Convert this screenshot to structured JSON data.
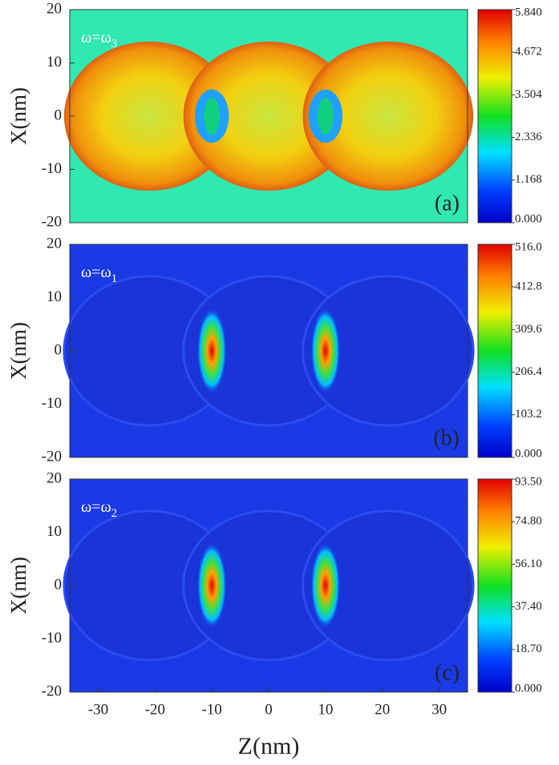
{
  "chart_data": [
    {
      "type": "heatmap",
      "colormap": "jet",
      "annotation": [
        "ω=ω",
        "3"
      ],
      "panel_label": "(a)",
      "ylabel": "X(nm)",
      "xlim": [
        -35,
        35
      ],
      "ylim": [
        -20,
        20
      ],
      "yticks": [
        -20,
        -10,
        0,
        10,
        20
      ],
      "clim": [
        0,
        5.84
      ],
      "cticks": [
        {
          "value": 0,
          "label": "0.000"
        },
        {
          "value": 1.168,
          "label": "1.168"
        },
        {
          "value": 2.336,
          "label": "2.336"
        },
        {
          "value": 3.504,
          "label": "3.504"
        },
        {
          "value": 4.672,
          "label": "4.672"
        },
        {
          "value": 5.84,
          "label": "5.840"
        }
      ]
    },
    {
      "type": "heatmap",
      "colormap": "jet",
      "annotation": [
        "ω=ω",
        "1"
      ],
      "panel_label": "(b)",
      "ylabel": "X(nm)",
      "xlim": [
        -35,
        35
      ],
      "ylim": [
        -20,
        20
      ],
      "yticks": [
        -20,
        -10,
        0,
        10,
        20
      ],
      "clim": [
        0,
        516
      ],
      "cticks": [
        {
          "value": 0,
          "label": "0.000"
        },
        {
          "value": 103.2,
          "label": "103.2"
        },
        {
          "value": 206.4,
          "label": "206.4"
        },
        {
          "value": 309.6,
          "label": "309.6"
        },
        {
          "value": 412.8,
          "label": "412.8"
        },
        {
          "value": 516,
          "label": "516.0"
        }
      ]
    },
    {
      "type": "heatmap",
      "colormap": "jet",
      "annotation": [
        "ω=ω",
        "2"
      ],
      "panel_label": "(c)",
      "ylabel": "X(nm)",
      "xlabel": "Z(nm)",
      "xlim": [
        -35,
        35
      ],
      "ylim": [
        -20,
        20
      ],
      "yticks": [
        -20,
        -10,
        0,
        10,
        20
      ],
      "xticks": [
        -30,
        -20,
        -10,
        0,
        10,
        20,
        30
      ],
      "clim": [
        0,
        93.5
      ],
      "cticks": [
        {
          "value": 0,
          "label": "0.000"
        },
        {
          "value": 18.7,
          "label": "18.70"
        },
        {
          "value": 37.4,
          "label": "37.40"
        },
        {
          "value": 56.1,
          "label": "56.10"
        },
        {
          "value": 74.8,
          "label": "74.80"
        },
        {
          "value": 93.5,
          "label": "93.50"
        }
      ]
    }
  ]
}
